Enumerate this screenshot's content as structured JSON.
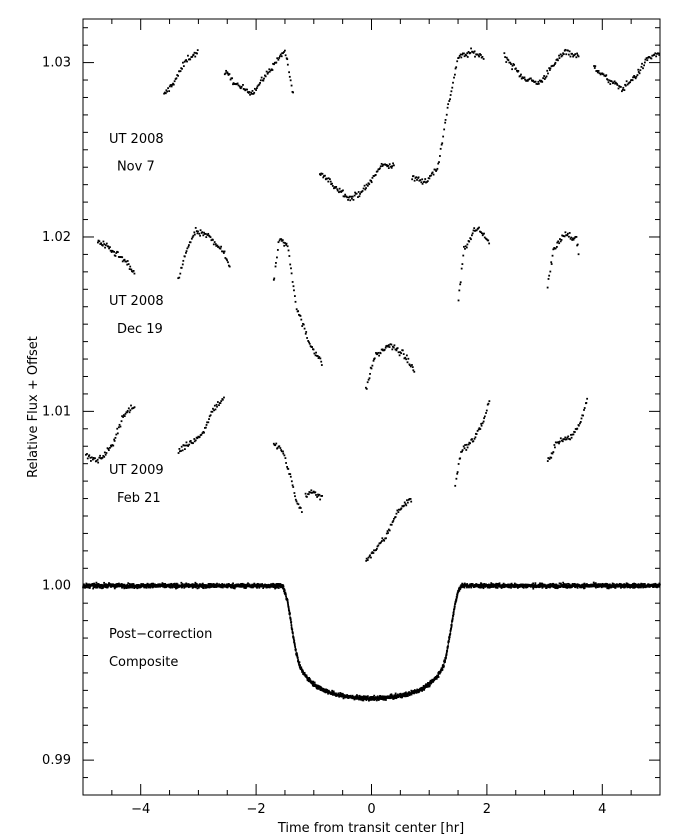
{
  "chart_data": {
    "type": "scatter",
    "title": "",
    "xlabel": "Time from transit center [hr]",
    "ylabel": "Relative Flux + Offset",
    "xlim": [
      -5.0,
      5.0
    ],
    "ylim": [
      0.988,
      1.0325
    ],
    "x_ticks": [
      -4,
      -2,
      0,
      2,
      4
    ],
    "x_tick_labels": [
      "−4",
      "−2",
      "0",
      "2",
      "4"
    ],
    "y_ticks": [
      0.99,
      1.0,
      1.01,
      1.02,
      1.03
    ],
    "y_tick_labels": [
      "0.99",
      "1.00",
      "1.01",
      "1.02",
      "1.03"
    ],
    "grid": false,
    "annotations": [
      {
        "lines": [
          "UT 2008",
          "Nov  7"
        ],
        "x": -4.55,
        "y": [
          1.0254,
          1.0238
        ]
      },
      {
        "lines": [
          "UT 2008",
          "Dec 19"
        ],
        "x": -4.55,
        "y": [
          1.0161,
          1.0145
        ]
      },
      {
        "lines": [
          "UT 2009",
          "Feb 21"
        ],
        "x": -4.55,
        "y": [
          1.0064,
          1.0048
        ]
      },
      {
        "lines": [
          "Post−correction",
          "Composite"
        ],
        "x": -4.55,
        "y": [
          0.997,
          0.9954
        ]
      }
    ],
    "series": [
      {
        "segments": [
          {
            "x": [
              -3.6,
              -3.4,
              -3.2,
              -3.0
            ],
            "y": [
              1.0281,
              1.029,
              1.0302,
              1.0306
            ]
          },
          {
            "x": [
              -2.55,
              -2.3,
              -2.05,
              -1.8,
              -1.5,
              -1.35
            ],
            "y": [
              1.0295,
              1.0286,
              1.0283,
              1.0294,
              1.0307,
              1.028
            ]
          },
          {
            "x": [
              -0.9,
              -0.6,
              -0.35,
              -0.1,
              0.2,
              0.4
            ],
            "y": [
              1.0237,
              1.0228,
              1.0222,
              1.0228,
              1.0242,
              1.024
            ]
          },
          {
            "x": [
              0.7,
              0.95,
              1.15,
              1.3,
              1.5,
              1.75,
              1.95
            ],
            "y": [
              1.0234,
              1.0232,
              1.024,
              1.027,
              1.0303,
              1.0306,
              1.0303
            ]
          },
          {
            "x": [
              2.3,
              2.6,
              2.9,
              3.1,
              3.35,
              3.6
            ],
            "y": [
              1.0304,
              1.0292,
              1.0288,
              1.0296,
              1.0307,
              1.0303
            ]
          },
          {
            "x": [
              3.85,
              4.1,
              4.35,
              4.6,
              4.8,
              5.0
            ],
            "y": [
              1.0298,
              1.029,
              1.0285,
              1.0293,
              1.0303,
              1.0305
            ]
          }
        ]
      },
      {
        "segments": [
          {
            "x": [
              -4.75,
              -4.5,
              -4.3,
              -4.1
            ],
            "y": [
              1.0198,
              1.0192,
              1.0187,
              1.0179
            ]
          },
          {
            "x": [
              -3.35,
              -3.2,
              -3.05,
              -2.8,
              -2.6,
              -2.45
            ],
            "y": [
              1.0175,
              1.0193,
              1.0203,
              1.02,
              1.0193,
              1.0183
            ]
          },
          {
            "x": [
              -1.7,
              -1.6,
              -1.45,
              -1.3,
              -1.1,
              -0.85
            ],
            "y": [
              1.0174,
              1.0199,
              1.0195,
              1.016,
              1.0141,
              1.0127
            ]
          },
          {
            "x": [
              -0.1,
              0.05,
              0.3,
              0.55,
              0.75
            ],
            "y": [
              1.0112,
              1.0131,
              1.0138,
              1.0133,
              1.0123
            ]
          },
          {
            "x": [
              1.5,
              1.6,
              1.8,
              2.0,
              2.05
            ],
            "y": [
              1.0162,
              1.0192,
              1.0205,
              1.02,
              1.0195
            ]
          },
          {
            "x": [
              3.05,
              3.15,
              3.35,
              3.55,
              3.6
            ],
            "y": [
              1.0171,
              1.0192,
              1.0202,
              1.0199,
              1.0189
            ]
          }
        ]
      },
      {
        "segments": [
          {
            "x": [
              -4.95,
              -4.75,
              -4.5,
              -4.3,
              -4.1
            ],
            "y": [
              1.0075,
              1.0071,
              1.008,
              1.0098,
              1.0103
            ]
          },
          {
            "x": [
              -3.35,
              -3.15,
              -2.95,
              -2.75,
              -2.55
            ],
            "y": [
              1.0077,
              1.0082,
              1.0086,
              1.0101,
              1.0108
            ]
          },
          {
            "x": [
              -1.7,
              -1.55,
              -1.4,
              -1.3,
              -1.2
            ],
            "y": [
              1.0081,
              1.0078,
              1.0062,
              1.0048,
              1.0043
            ]
          },
          {
            "x": [
              -1.15,
              -1.0,
              -0.85
            ],
            "y": [
              1.0052,
              1.0054,
              1.005
            ]
          },
          {
            "x": [
              -0.1,
              0.05,
              0.25,
              0.45,
              0.7
            ],
            "y": [
              1.0015,
              1.002,
              1.0028,
              1.0043,
              1.005
            ]
          },
          {
            "x": [
              1.45,
              1.55,
              1.75,
              1.95,
              2.05
            ],
            "y": [
              1.0057,
              1.0077,
              1.0083,
              1.0095,
              1.0107
            ]
          },
          {
            "x": [
              3.05,
              3.2,
              3.45,
              3.6,
              3.75
            ],
            "y": [
              1.007,
              1.0082,
              1.0085,
              1.0092,
              1.0108
            ]
          }
        ]
      },
      {
        "segments": [
          {
            "x": [
              -5.0,
              -4.0,
              -3.0,
              -2.0,
              -1.55,
              -1.5,
              -1.45,
              -1.4,
              -1.35,
              -1.3,
              -1.25,
              -1.2,
              -1.1,
              -1.0,
              -0.9,
              -0.8,
              -0.6,
              -0.4,
              -0.2,
              0.0,
              0.2,
              0.4,
              0.6,
              0.8,
              0.9,
              1.0,
              1.1,
              1.2,
              1.25,
              1.3,
              1.35,
              1.4,
              1.45,
              1.5,
              1.55,
              2.0,
              3.0,
              4.0,
              5.0
            ],
            "y": [
              1.0,
              1.0,
              1.0,
              1.0,
              1.0,
              0.99965,
              0.999,
              0.998,
              0.997,
              0.9961,
              0.99545,
              0.9951,
              0.99465,
              0.99435,
              0.99415,
              0.99398,
              0.99375,
              0.99363,
              0.99356,
              0.99354,
              0.99356,
              0.99363,
              0.99375,
              0.99398,
              0.99415,
              0.99435,
              0.99465,
              0.9951,
              0.99545,
              0.9961,
              0.997,
              0.998,
              0.999,
              0.99965,
              1.0,
              1.0,
              1.0,
              1.0,
              1.0
            ]
          }
        ]
      }
    ]
  }
}
